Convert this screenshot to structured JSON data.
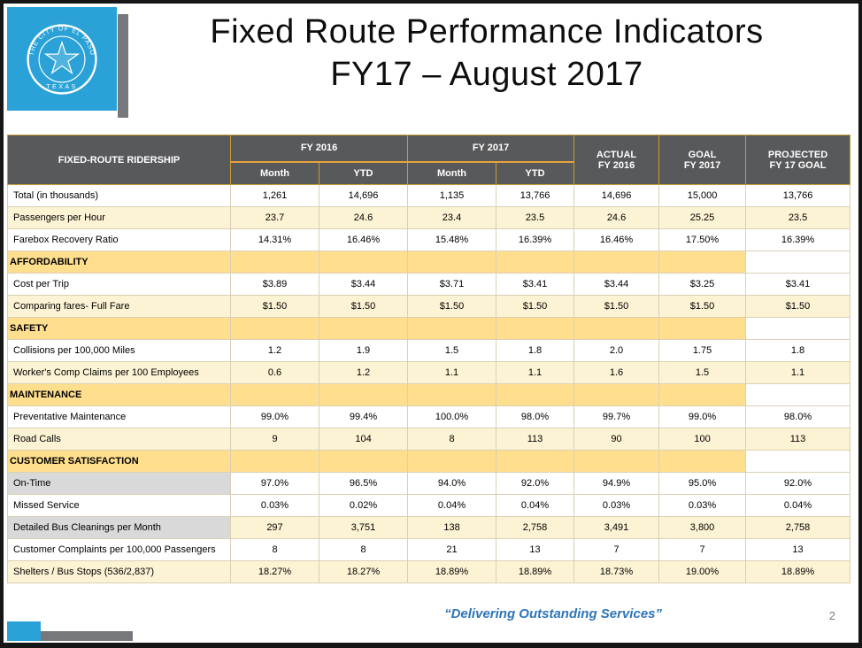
{
  "slide": {
    "title_line1": "Fixed Route Performance Indicators",
    "title_line2": "FY17 – August 2017",
    "footer_quote": "“Delivering Outstanding Services”",
    "page_number": "2",
    "logo_seal_top": "THE CITY OF EL PASO",
    "logo_seal_bottom": "TEXAS"
  },
  "colors": {
    "header_bg": "#58595B",
    "gold_accent": "#E8A33D",
    "section_bg": "#FFDF8E",
    "cream_row": "#FCF3D4",
    "gray_label": "#D9D9D9",
    "logo_blue": "#2AA2D8",
    "shadow_gray": "#77787B",
    "quote_blue": "#2E75B6"
  },
  "table": {
    "corner_label": "FIXED-ROUTE RIDERSHIP",
    "groups": [
      {
        "label": "FY 2016",
        "sub": [
          "Month",
          "YTD"
        ]
      },
      {
        "label": "FY 2017",
        "sub": [
          "Month",
          "YTD"
        ]
      }
    ],
    "span_headers": [
      {
        "line1": "ACTUAL",
        "line2": "FY 2016"
      },
      {
        "line1": "GOAL",
        "line2": "FY 2017"
      },
      {
        "line1": "PROJECTED",
        "line2": "FY 17 GOAL"
      }
    ],
    "rows": [
      {
        "label": "Total (in thousands)",
        "values": [
          "1,261",
          "14,696",
          "1,135",
          "13,766",
          "14,696",
          "15,000",
          "13,766"
        ],
        "shade": "white"
      },
      {
        "label": "Passengers per Hour",
        "values": [
          "23.7",
          "24.6",
          "23.4",
          "23.5",
          "24.6",
          "25.25",
          "23.5"
        ],
        "shade": "cream"
      },
      {
        "label": "Farebox Recovery Ratio",
        "values": [
          "14.31%",
          "16.46%",
          "15.48%",
          "16.39%",
          "16.46%",
          "17.50%",
          "16.39%"
        ],
        "shade": "white"
      },
      {
        "section": "AFFORDABILITY"
      },
      {
        "label": "Cost per Trip",
        "values": [
          "$3.89",
          "$3.44",
          "$3.71",
          "$3.41",
          "$3.44",
          "$3.25",
          "$3.41"
        ],
        "shade": "white"
      },
      {
        "label": "Comparing fares- Full Fare",
        "values": [
          "$1.50",
          "$1.50",
          "$1.50",
          "$1.50",
          "$1.50",
          "$1.50",
          "$1.50"
        ],
        "shade": "cream"
      },
      {
        "section": "SAFETY"
      },
      {
        "label": "Collisions per 100,000 Miles",
        "values": [
          "1.2",
          "1.9",
          "1.5",
          "1.8",
          "2.0",
          "1.75",
          "1.8"
        ],
        "shade": "white"
      },
      {
        "label": "Worker's Comp Claims per 100 Employees",
        "values": [
          "0.6",
          "1.2",
          "1.1",
          "1.1",
          "1.6",
          "1.5",
          "1.1"
        ],
        "shade": "cream"
      },
      {
        "section": "MAINTENANCE"
      },
      {
        "label": "Preventative Maintenance",
        "values": [
          "99.0%",
          "99.4%",
          "100.0%",
          "98.0%",
          "99.7%",
          "99.0%",
          "98.0%"
        ],
        "shade": "white"
      },
      {
        "label": "Road Calls",
        "values": [
          "9",
          "104",
          "8",
          "113",
          "90",
          "100",
          "113"
        ],
        "shade": "cream"
      },
      {
        "section": "CUSTOMER SATISFACTION"
      },
      {
        "label": "On-Time",
        "values": [
          "97.0%",
          "96.5%",
          "94.0%",
          "92.0%",
          "94.9%",
          "95.0%",
          "92.0%"
        ],
        "shade": "white",
        "label_gray": true
      },
      {
        "label": "Missed Service",
        "values": [
          "0.03%",
          "0.02%",
          "0.04%",
          "0.04%",
          "0.03%",
          "0.03%",
          "0.04%"
        ],
        "shade": "white"
      },
      {
        "label": "Detailed Bus Cleanings per Month",
        "values": [
          "297",
          "3,751",
          "138",
          "2,758",
          "3,491",
          "3,800",
          "2,758"
        ],
        "shade": "cream",
        "label_gray": true
      },
      {
        "label": "Customer Complaints per 100,000 Passengers",
        "values": [
          "8",
          "8",
          "21",
          "13",
          "7",
          "7",
          "13"
        ],
        "shade": "white"
      },
      {
        "label": "Shelters / Bus Stops (536/2,837)",
        "values": [
          "18.27%",
          "18.27%",
          "18.89%",
          "18.89%",
          "18.73%",
          "19.00%",
          "18.89%"
        ],
        "shade": "cream"
      }
    ]
  }
}
